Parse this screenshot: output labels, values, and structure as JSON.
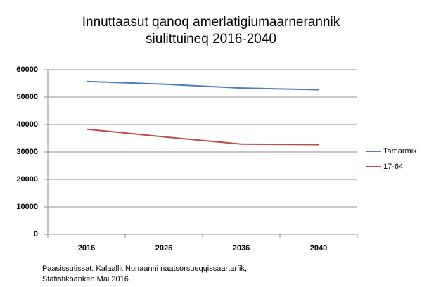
{
  "chart_data": {
    "type": "line",
    "title": [
      "Innuttaasut qanoq amerlatigiumaarnerannik",
      "siulittuineq 2016-2040"
    ],
    "categories": [
      "2016",
      "2026",
      "2036",
      "2040"
    ],
    "series": [
      {
        "name": "Tamarmik",
        "color": "#4a7ebb",
        "values": [
          55700,
          54700,
          53300,
          52700
        ]
      },
      {
        "name": "17-64",
        "color": "#be4b48",
        "values": [
          38300,
          35500,
          32900,
          32700
        ]
      }
    ],
    "ylim": [
      0,
      60000
    ],
    "yticks": [
      0,
      10000,
      20000,
      30000,
      40000,
      50000,
      60000
    ],
    "grid": true,
    "legend": "right",
    "source": [
      "Paasissutissat: Kalaallit Nunaanni naatsorsueqqissaartarfik,",
      "Statistikbanken Mai 2016"
    ]
  }
}
